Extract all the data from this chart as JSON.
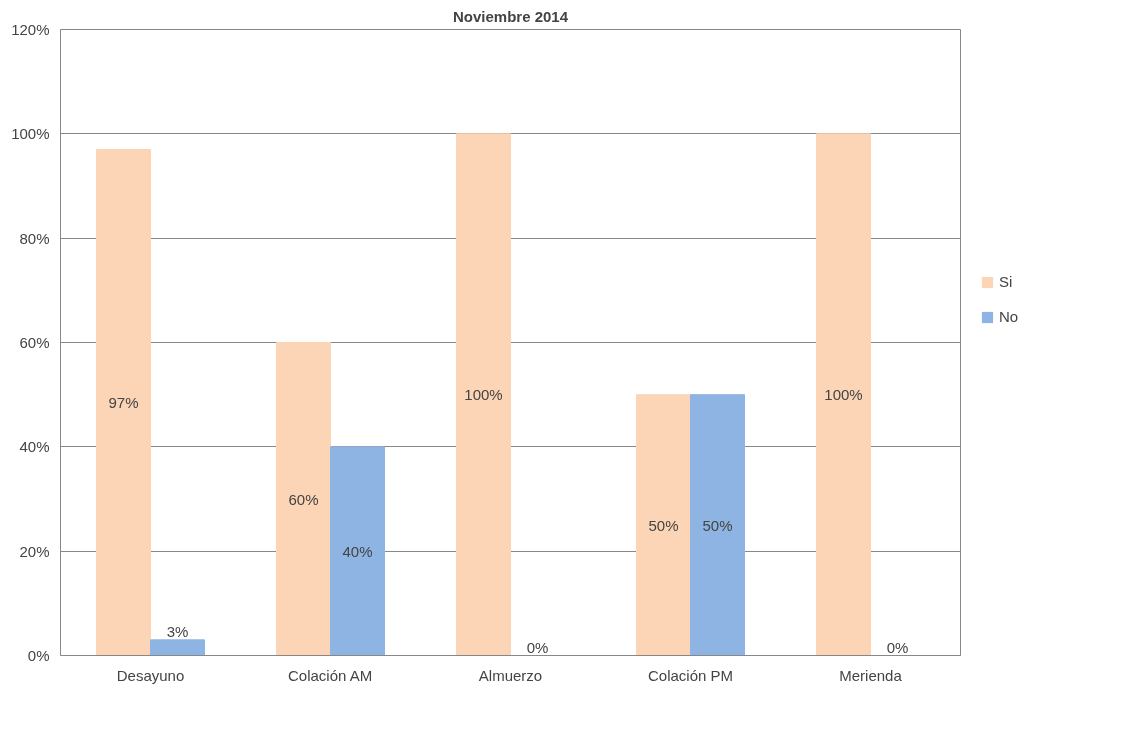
{
  "chart_data": {
    "type": "bar",
    "title": "Noviembre 2014",
    "categories": [
      "Desayuno",
      "Colación AM",
      "Almuerzo",
      "Colación PM",
      "Merienda"
    ],
    "series": [
      {
        "name": "Si",
        "color": "#fbd5b5",
        "values": [
          97,
          60,
          100,
          50,
          100
        ],
        "value_labels": [
          "97%",
          "60%",
          "100%",
          "50%",
          "100%"
        ]
      },
      {
        "name": "No",
        "color": "#8eb4e3",
        "values": [
          3,
          40,
          0,
          50,
          0
        ],
        "value_labels": [
          "3%",
          "40%",
          "0%",
          "50%",
          "0%"
        ]
      }
    ],
    "ylim": [
      0,
      120
    ],
    "yticks": [
      {
        "value": 0,
        "label": "0%"
      },
      {
        "value": 20,
        "label": "20%"
      },
      {
        "value": 40,
        "label": "40%"
      },
      {
        "value": 60,
        "label": "60%"
      },
      {
        "value": 80,
        "label": "80%"
      },
      {
        "value": 100,
        "label": "100%"
      },
      {
        "value": 120,
        "label": "120%"
      }
    ],
    "grid": "y",
    "legend": "right"
  }
}
